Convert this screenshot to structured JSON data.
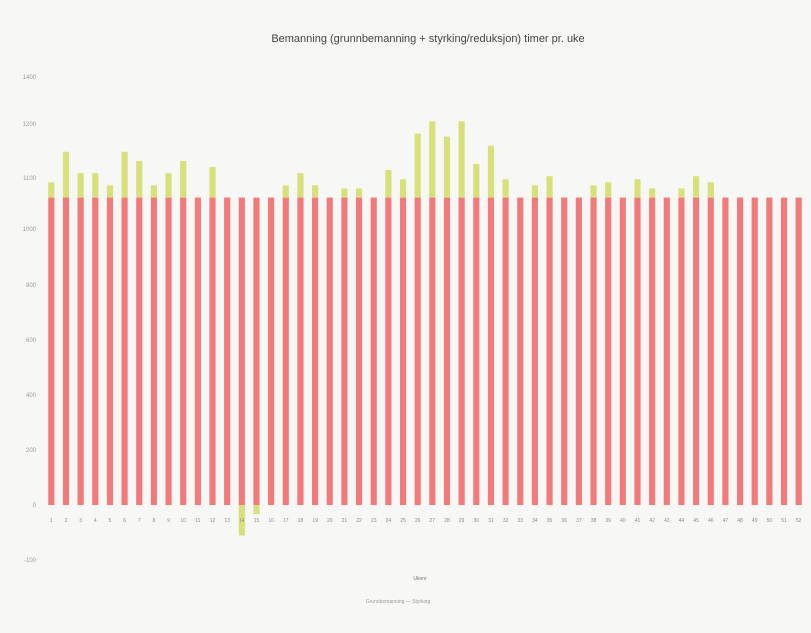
{
  "chart_data": {
    "type": "bar",
    "stacked": true,
    "title": "Bemanning (grunnbemanning + styrking/reduksjon) timer pr. uke",
    "xlabel": "Ukenr",
    "ylabel": "",
    "categories": [
      "1",
      "2",
      "3",
      "4",
      "5",
      "6",
      "7",
      "8",
      "9",
      "10",
      "11",
      "12",
      "13",
      "14",
      "15",
      "16",
      "17",
      "18",
      "19",
      "20",
      "21",
      "22",
      "23",
      "24",
      "25",
      "26",
      "27",
      "28",
      "29",
      "30",
      "31",
      "32",
      "33",
      "34",
      "35",
      "36",
      "37",
      "38",
      "39",
      "40",
      "41",
      "42",
      "43",
      "44",
      "45",
      "46",
      "47",
      "48",
      "49",
      "50",
      "51",
      "52"
    ],
    "series": [
      {
        "name": "Grunnbemanning",
        "color": "#f27a7a",
        "values": [
          1008,
          1008,
          1008,
          1008,
          1008,
          1008,
          1008,
          1008,
          1008,
          1008,
          1008,
          1008,
          1008,
          1008,
          1008,
          1008,
          1008,
          1008,
          1008,
          1008,
          1008,
          1008,
          1008,
          1008,
          1008,
          1008,
          1008,
          1008,
          1008,
          1008,
          1008,
          1008,
          1008,
          1008,
          1008,
          1008,
          1008,
          1008,
          1008,
          1008,
          1008,
          1008,
          1008,
          1008,
          1008,
          1008,
          1008,
          1008,
          1008,
          1008,
          1008,
          1008
        ]
      },
      {
        "name": "Styrking",
        "color": "#d8e07a",
        "values": [
          50,
          150,
          80,
          80,
          40,
          150,
          120,
          40,
          80,
          120,
          0,
          100,
          0,
          -100,
          -30,
          0,
          40,
          80,
          40,
          0,
          30,
          30,
          0,
          90,
          60,
          210,
          250,
          200,
          250,
          110,
          170,
          60,
          0,
          40,
          70,
          0,
          0,
          40,
          50,
          0,
          60,
          30,
          0,
          30,
          70,
          50,
          0,
          0,
          0,
          0,
          0,
          0
        ]
      }
    ],
    "ylim": [
      -100,
      1400
    ],
    "yticks": [
      "1400",
      "1200",
      "1100",
      "1000",
      "800",
      "600",
      "400",
      "200",
      "0",
      "-100"
    ],
    "legend_text": "Grunnbemanning — Styrking",
    "legend_position": "bottom"
  }
}
